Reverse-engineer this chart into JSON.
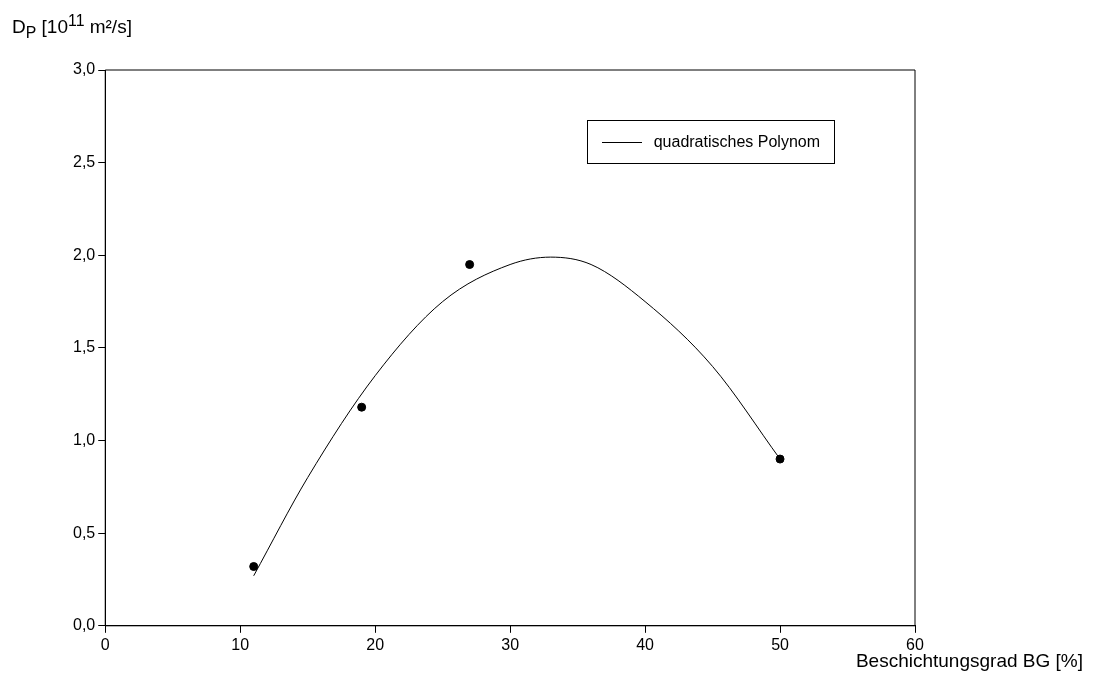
{
  "chart_data": {
    "type": "scatter",
    "xlabel": "Beschichtungsgrad BG [%]",
    "ylabel": "D$_{P}$ [10$^{11}$ m²/s]",
    "xlim": [
      0,
      60
    ],
    "xticks": [
      0,
      10,
      20,
      30,
      40,
      50,
      60
    ],
    "ylim": [
      0,
      3
    ],
    "yticks": [
      {
        "value": 0,
        "label": "0,0"
      },
      {
        "value": 0.5,
        "label": "0,5"
      },
      {
        "value": 1,
        "label": "1,0"
      },
      {
        "value": 1.5,
        "label": "1,5"
      },
      {
        "value": 2,
        "label": "2,0"
      },
      {
        "value": 2.5,
        "label": "2,5"
      },
      {
        "value": 3,
        "label": "3,0"
      }
    ],
    "grid": false,
    "legend": "top right",
    "marker": "circle",
    "series": [
      {
        "type": "scatter",
        "color": "#000000",
        "x": [
          11,
          19,
          27,
          50
        ],
        "values": [
          0.32,
          1.18,
          1.95,
          0.9
        ]
      },
      {
        "type": "line",
        "name": "quadratisches Polynom",
        "color": "#000000",
        "marker": "none",
        "line_style": "solid",
        "x": [
          11,
          15,
          20,
          25,
          30,
          33,
          36,
          40,
          45,
          50
        ],
        "values": [
          0.27,
          0.8,
          1.35,
          1.75,
          1.95,
          1.99,
          1.95,
          1.75,
          1.4,
          0.9
        ]
      }
    ]
  }
}
